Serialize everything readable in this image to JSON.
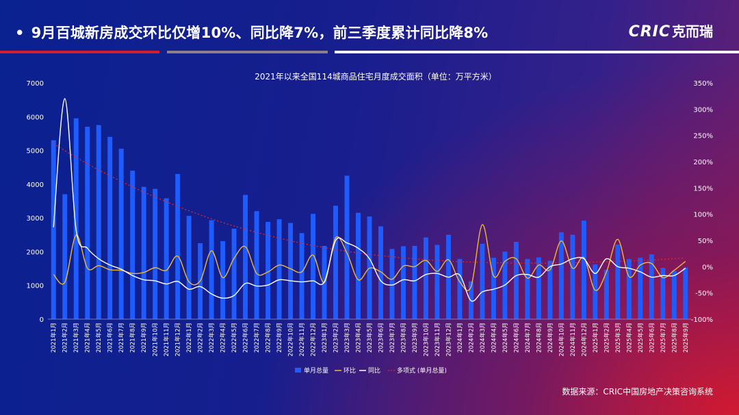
{
  "header": {
    "bullet": "•",
    "headline": "9月百城新房成交环比仅增10%、同比降7%，前三季度累计同比降8%",
    "logo_en": "CRIC",
    "logo_cn": "克而瑞"
  },
  "footer": {
    "source": "数据来源：CRIC中国房地产决策咨询系统"
  },
  "colors": {
    "bar": "#1f5cff",
    "mom": "#f0b830",
    "yoy": "#ffffff",
    "trend": "#e02828"
  },
  "chart_data": {
    "type": "bar",
    "title": "2021年以来全国114城商品住宅月度成交面积（单位：万平方米）",
    "categories": [
      "2021年1月",
      "2021年2月",
      "2021年3月",
      "2021年4月",
      "2021年5月",
      "2021年6月",
      "2021年7月",
      "2021年8月",
      "2021年9月",
      "2021年10月",
      "2021年11月",
      "2021年12月",
      "2022年1月",
      "2022年2月",
      "2022年3月",
      "2022年4月",
      "2022年5月",
      "2022年6月",
      "2022年7月",
      "2022年8月",
      "2022年9月",
      "2022年10月",
      "2022年11月",
      "2022年12月",
      "2023年1月",
      "2023年2月",
      "2023年3月",
      "2023年4月",
      "2023年5月",
      "2023年6月",
      "2023年7月",
      "2023年8月",
      "2023年9月",
      "2023年10月",
      "2023年11月",
      "2023年12月",
      "2024年1月",
      "2024年2月",
      "2024年3月",
      "2024年4月",
      "2024年5月",
      "2024年6月",
      "2024年7月",
      "2024年8月",
      "2024年9月",
      "2024年10月",
      "2024年11月",
      "2024年12月",
      "2025年1月",
      "2025年2月",
      "2025年3月",
      "2025年4月",
      "2025年5月",
      "2025年6月",
      "2025年7月",
      "2025年8月",
      "2025年9月"
    ],
    "series": [
      {
        "name": "单月总量",
        "type": "bar",
        "axis": "left",
        "values": [
          5300,
          3700,
          5950,
          5700,
          5750,
          5400,
          5050,
          4400,
          3920,
          3860,
          3580,
          4300,
          3060,
          2250,
          2930,
          2310,
          2680,
          3680,
          3200,
          2880,
          2960,
          2850,
          2550,
          3120,
          2170,
          3360,
          4250,
          3150,
          3040,
          2750,
          2080,
          2160,
          2170,
          2420,
          2200,
          2500,
          1780,
          1120,
          2230,
          1820,
          2000,
          2290,
          1780,
          1830,
          1730,
          2570,
          2500,
          2920,
          1620,
          1460,
          2210,
          1780,
          1820,
          1920,
          1520,
          1430,
          1530
        ]
      },
      {
        "name": "环比",
        "type": "line",
        "axis": "right",
        "values": [
          -15,
          -30,
          60,
          -3,
          2,
          -6,
          -7,
          -13,
          -11,
          -2,
          -7,
          20,
          -29,
          -27,
          30,
          -21,
          16,
          38,
          -13,
          -10,
          3,
          -4,
          -10,
          22,
          -30,
          55,
          26,
          -25,
          -3,
          -10,
          -24,
          1,
          0,
          12,
          -9,
          13,
          -29,
          -38,
          80,
          -18,
          10,
          15,
          -22,
          3,
          -6,
          49,
          -3,
          17,
          -45,
          -10,
          52,
          -19,
          3,
          6,
          -21,
          -7,
          10
        ]
      },
      {
        "name": "同比",
        "type": "line",
        "axis": "right",
        "values": [
          75,
          320,
          70,
          35,
          15,
          3,
          -5,
          -17,
          -25,
          -27,
          -33,
          -28,
          -43,
          -38,
          -52,
          -60,
          -55,
          -32,
          -37,
          -35,
          -25,
          -27,
          -29,
          -27,
          -29,
          50,
          45,
          35,
          15,
          -27,
          -35,
          -25,
          -27,
          -15,
          -13,
          -20,
          -16,
          -65,
          -48,
          -43,
          -35,
          -17,
          -15,
          -20,
          0,
          5,
          15,
          15,
          -13,
          15,
          0,
          -3,
          -10,
          -20,
          -17,
          -17,
          -3
        ]
      },
      {
        "name": "多项式 (单月总量)",
        "type": "trend",
        "axis": "left",
        "values": [
          5200,
          4990,
          4790,
          4600,
          4420,
          4250,
          4080,
          3920,
          3760,
          3620,
          3480,
          3340,
          3210,
          3090,
          2970,
          2860,
          2760,
          2660,
          2570,
          2480,
          2400,
          2320,
          2250,
          2180,
          2120,
          2060,
          2010,
          1960,
          1920,
          1880,
          1850,
          1810,
          1790,
          1760,
          1740,
          1720,
          1700,
          1690,
          1680,
          1670,
          1670,
          1660,
          1660,
          1660,
          1660,
          1670,
          1670,
          1680,
          1690,
          1700,
          1710,
          1720,
          1740,
          1750,
          1770,
          1790,
          1810
        ]
      }
    ],
    "y_left": {
      "min": 0,
      "max": 7000,
      "ticks": [
        "0",
        "1000",
        "2000",
        "3000",
        "4000",
        "5000",
        "6000",
        "7000"
      ]
    },
    "y_right": {
      "min": -100,
      "max": 350,
      "ticks": [
        "-100%",
        "-50%",
        "0%",
        "50%",
        "100%",
        "150%",
        "200%",
        "250%",
        "300%",
        "350%"
      ]
    },
    "legend": {
      "placement": "bottom",
      "items": [
        "单月总量",
        "环比",
        "同比",
        "多项式 (单月总量)"
      ]
    },
    "grid": false
  }
}
